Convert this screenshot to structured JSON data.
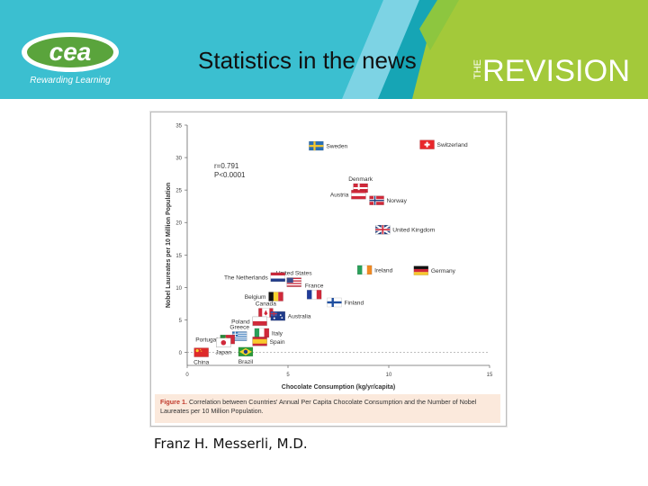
{
  "header": {
    "logo_text": "cea",
    "logo_tagline": "Rewarding Learning",
    "title": "Statistics in the news",
    "brand_the": "THE",
    "brand_name": "REVISION",
    "colors": {
      "teal": "#3bbfd0",
      "lime": "#a3c93a",
      "green": "#8dc63f",
      "logo_green": "#5aa43c"
    }
  },
  "figure": {
    "stats_r": "r=0.791",
    "stats_p": "P<0.0001",
    "caption_label": "Figure 1.",
    "caption_text": "Correlation between Countries' Annual Per Capita Chocolate Consumption and the Number of Nobel Laureates per 10 Million Population."
  },
  "chart_data": {
    "type": "scatter",
    "xlabel": "Chocolate Consumption (kg/yr/capita)",
    "ylabel": "Nobel Laureates per 10 Million Population",
    "xlim": [
      0,
      15
    ],
    "ylim": [
      -2,
      35
    ],
    "xticks": [
      0,
      5,
      10,
      15
    ],
    "yticks": [
      0,
      5,
      10,
      15,
      20,
      25,
      30,
      35
    ],
    "points": [
      {
        "label": "Switzerland",
        "x": 11.9,
        "y": 32.0,
        "flag": "ch",
        "label_pos": "right"
      },
      {
        "label": "Sweden",
        "x": 6.4,
        "y": 31.8,
        "flag": "se",
        "label_pos": "right"
      },
      {
        "label": "Denmark",
        "x": 8.6,
        "y": 25.3,
        "flag": "dk",
        "label_pos": "above"
      },
      {
        "label": "Austria",
        "x": 8.5,
        "y": 24.3,
        "flag": "at",
        "label_pos": "left"
      },
      {
        "label": "Norway",
        "x": 9.4,
        "y": 23.4,
        "flag": "no",
        "label_pos": "right"
      },
      {
        "label": "United Kingdom",
        "x": 9.7,
        "y": 18.9,
        "flag": "gb",
        "label_pos": "right"
      },
      {
        "label": "Ireland",
        "x": 8.8,
        "y": 12.7,
        "flag": "ie",
        "label_pos": "right"
      },
      {
        "label": "Germany",
        "x": 11.6,
        "y": 12.6,
        "flag": "de",
        "label_pos": "right"
      },
      {
        "label": "United States",
        "x": 5.3,
        "y": 10.8,
        "flag": "us",
        "label_pos": "above"
      },
      {
        "label": "The Netherlands",
        "x": 4.5,
        "y": 11.6,
        "flag": "nl",
        "label_pos": "left"
      },
      {
        "label": "France",
        "x": 6.3,
        "y": 8.9,
        "flag": "fr",
        "label_pos": "above"
      },
      {
        "label": "Finland",
        "x": 7.3,
        "y": 7.7,
        "flag": "fi",
        "label_pos": "right"
      },
      {
        "label": "Belgium",
        "x": 4.4,
        "y": 8.6,
        "flag": "be",
        "label_pos": "left"
      },
      {
        "label": "Canada",
        "x": 3.9,
        "y": 6.1,
        "flag": "ca",
        "label_pos": "above"
      },
      {
        "label": "Australia",
        "x": 4.5,
        "y": 5.6,
        "flag": "au",
        "label_pos": "right"
      },
      {
        "label": "Poland",
        "x": 3.6,
        "y": 4.8,
        "flag": "pl",
        "label_pos": "left"
      },
      {
        "label": "Greece",
        "x": 2.6,
        "y": 2.5,
        "flag": "gr",
        "label_pos": "above"
      },
      {
        "label": "Portugal",
        "x": 2.0,
        "y": 2.0,
        "flag": "pt",
        "label_pos": "left"
      },
      {
        "label": "Italy",
        "x": 3.7,
        "y": 3.0,
        "flag": "it",
        "label_pos": "right"
      },
      {
        "label": "Spain",
        "x": 3.6,
        "y": 1.7,
        "flag": "es",
        "label_pos": "right"
      },
      {
        "label": "Japan",
        "x": 1.8,
        "y": 1.5,
        "flag": "jp",
        "label_pos": "below"
      },
      {
        "label": "China",
        "x": 0.7,
        "y": 0.0,
        "flag": "cn",
        "label_pos": "below"
      },
      {
        "label": "Brazil",
        "x": 2.9,
        "y": 0.1,
        "flag": "br",
        "label_pos": "below"
      }
    ]
  },
  "author": "Franz H. Messerli, M.D."
}
